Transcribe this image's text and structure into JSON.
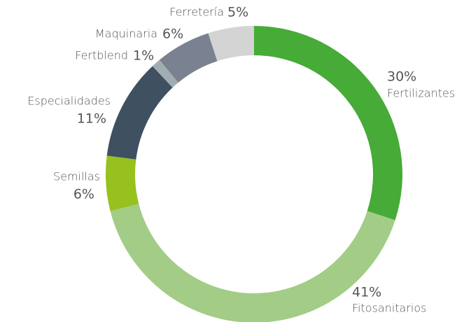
{
  "chart_data": {
    "type": "donut",
    "categories": [
      "Fertilizantes",
      "Fitosanitarios",
      "Semillas",
      "Especialidades",
      "Fertblend",
      "Maquinaria",
      "Ferretería"
    ],
    "values": [
      30,
      41,
      6,
      11,
      1,
      6,
      5
    ],
    "value_labels": [
      "30%",
      "41%",
      "6%",
      "11%",
      "1%",
      "6%",
      "5%"
    ],
    "colors": [
      "#46ab37",
      "#a3cc87",
      "#96c11f",
      "#3f5060",
      "#a2adb3",
      "#7a8190",
      "#d4d4d4"
    ]
  }
}
